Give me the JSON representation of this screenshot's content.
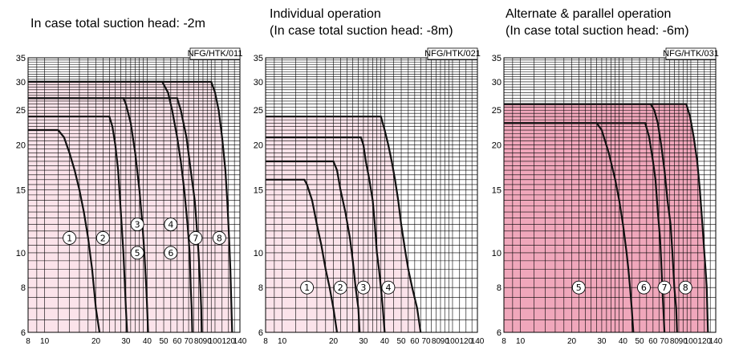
{
  "titles": {
    "left": "In case total suction head: -2m",
    "middle_1": "Individual operation",
    "middle_2": "(In case total suction head: -8m)",
    "right_1": "Alternate & parallel operation",
    "right_2": "(In case total suction head: -6m)"
  },
  "colors": {
    "fill_light": "#fbe3ea",
    "fill_dark": "#f0a7bb",
    "grid": "#000000",
    "curve": "#111111"
  },
  "chart_data": [
    {
      "type": "line",
      "code": "NFG/HTK/011",
      "x_ticks": [
        8,
        10,
        20,
        30,
        40,
        50,
        60,
        70,
        80,
        90,
        100,
        120,
        140
      ],
      "x_tick_labels": [
        "8",
        "10",
        "20",
        "30",
        "40",
        "50",
        "60",
        "70",
        "80",
        "90",
        "100",
        "120",
        "140"
      ],
      "y_ticks": [
        6,
        8,
        10,
        15,
        20,
        25,
        30,
        35
      ],
      "xlim": [
        8,
        140
      ],
      "ylim": [
        6,
        35
      ],
      "fill": "light",
      "series": [
        {
          "name": "1",
          "label_x": 14,
          "label_y": 11,
          "points": [
            [
              8,
              22
            ],
            [
              12,
              22
            ],
            [
              13,
              21
            ],
            [
              14,
              19
            ],
            [
              15,
              17
            ],
            [
              16,
              15
            ],
            [
              17,
              13
            ],
            [
              18,
              11
            ],
            [
              19,
              9
            ],
            [
              20,
              7
            ],
            [
              21,
              6
            ]
          ]
        },
        {
          "name": "2",
          "label_x": 22,
          "label_y": 11,
          "points": [
            [
              8,
              24
            ],
            [
              24,
              24
            ],
            [
              25,
              22.5
            ],
            [
              26,
              20
            ],
            [
              27,
              17
            ],
            [
              28,
              13
            ],
            [
              29,
              10
            ],
            [
              30,
              7
            ],
            [
              30.5,
              6
            ]
          ]
        },
        {
          "name": "3",
          "label_x": 35,
          "label_y": 12,
          "points": [
            [
              8,
              27
            ],
            [
              29,
              27
            ],
            [
              30,
              26
            ],
            [
              32,
              23
            ],
            [
              34,
              19
            ],
            [
              36,
              15
            ],
            [
              37.5,
              12
            ],
            [
              38.5,
              10
            ],
            [
              39.5,
              8
            ],
            [
              40,
              7
            ],
            [
              40.5,
              6
            ]
          ]
        },
        {
          "name": "4",
          "label_x": 55,
          "label_y": 12,
          "points": [
            [
              8,
              30
            ],
            [
              49,
              30
            ],
            [
              53,
              28
            ],
            [
              56,
              25
            ],
            [
              60,
              21
            ],
            [
              63,
              18
            ],
            [
              66,
              15
            ],
            [
              69,
              12
            ],
            [
              71,
              10
            ],
            [
              72,
              8
            ],
            [
              73,
              7
            ],
            [
              73.5,
              6
            ]
          ]
        },
        {
          "name": "5",
          "label_x": 35,
          "label_y": 10,
          "points": []
        },
        {
          "name": "6",
          "label_x": 55,
          "label_y": 10,
          "points": []
        },
        {
          "name": "7",
          "label_x": 77,
          "label_y": 11,
          "points": [
            [
              8,
              27
            ],
            [
              57,
              27
            ],
            [
              60,
              27
            ],
            [
              63,
              25
            ],
            [
              68,
              21
            ],
            [
              72,
              17
            ],
            [
              76,
              14
            ],
            [
              78,
              12
            ],
            [
              80,
              10
            ],
            [
              82,
              8
            ],
            [
              83,
              7
            ],
            [
              83.5,
              6
            ]
          ]
        },
        {
          "name": "8",
          "label_x": 106,
          "label_y": 11,
          "points": [
            [
              8,
              30
            ],
            [
              95,
              30
            ],
            [
              100,
              28
            ],
            [
              105,
              25
            ],
            [
              110,
              21
            ],
            [
              115,
              17
            ],
            [
              118,
              14
            ],
            [
              121,
              11
            ],
            [
              123,
              9
            ],
            [
              125,
              7
            ],
            [
              126,
              6
            ]
          ]
        }
      ]
    },
    {
      "type": "line",
      "code": "NFG/HTK/021",
      "x_ticks": [
        8,
        10,
        20,
        30,
        40,
        50,
        60,
        70,
        80,
        90,
        100,
        120,
        140
      ],
      "x_tick_labels": [
        "8",
        "10",
        "20",
        "30",
        "40",
        "50",
        "60",
        "70",
        "80",
        "90",
        "100",
        "120",
        "140"
      ],
      "y_ticks": [
        6,
        8,
        10,
        15,
        20,
        25,
        30,
        35
      ],
      "xlim": [
        8,
        140
      ],
      "ylim": [
        6,
        35
      ],
      "fill": "light",
      "series": [
        {
          "name": "1",
          "label_x": 14,
          "label_y": 8,
          "points": [
            [
              8,
              16
            ],
            [
              13.5,
              16
            ],
            [
              14,
              15.5
            ],
            [
              15,
              14
            ],
            [
              16,
              12
            ],
            [
              17,
              10.5
            ],
            [
              18,
              9
            ],
            [
              19,
              8
            ],
            [
              20,
              7
            ],
            [
              21,
              6
            ]
          ]
        },
        {
          "name": "2",
          "label_x": 22,
          "label_y": 8,
          "points": [
            [
              8,
              18
            ],
            [
              20,
              18
            ],
            [
              21,
              17
            ],
            [
              22,
              15
            ],
            [
              23.5,
              13
            ],
            [
              25,
              11
            ],
            [
              26,
              9.5
            ],
            [
              27,
              8
            ],
            [
              28,
              7
            ],
            [
              28.5,
              6
            ]
          ]
        },
        {
          "name": "3",
          "label_x": 30,
          "label_y": 8,
          "points": [
            [
              8,
              21
            ],
            [
              29,
              21
            ],
            [
              30,
              20
            ],
            [
              31,
              18
            ],
            [
              32.5,
              16
            ],
            [
              34,
              14
            ],
            [
              35,
              12
            ],
            [
              36,
              10
            ],
            [
              37,
              9
            ],
            [
              38,
              8
            ],
            [
              39,
              7
            ],
            [
              40,
              6
            ]
          ]
        },
        {
          "name": "4",
          "label_x": 42,
          "label_y": 8,
          "points": [
            [
              8,
              24
            ],
            [
              38,
              24
            ],
            [
              40,
              22
            ],
            [
              42,
              20
            ],
            [
              44,
              18
            ],
            [
              46,
              16
            ],
            [
              48,
              14
            ],
            [
              50,
              12
            ],
            [
              53,
              10
            ],
            [
              55,
              9
            ],
            [
              58,
              8
            ],
            [
              62,
              7
            ],
            [
              65,
              6
            ]
          ]
        }
      ]
    },
    {
      "type": "line",
      "code": "NFG/HTK/031",
      "x_ticks": [
        8,
        10,
        20,
        30,
        40,
        50,
        60,
        70,
        80,
        90,
        100,
        120,
        140
      ],
      "x_tick_labels": [
        "8",
        "10",
        "20",
        "30",
        "40",
        "50",
        "60",
        "70",
        "80",
        "90",
        "100",
        "120",
        "140"
      ],
      "y_ticks": [
        6,
        8,
        10,
        15,
        20,
        25,
        30,
        35
      ],
      "xlim": [
        8,
        140
      ],
      "ylim": [
        6,
        35
      ],
      "fill": "dark",
      "series": [
        {
          "name": "5",
          "label_x": 22,
          "label_y": 8,
          "points": [
            [
              8,
              23
            ],
            [
              28,
              23
            ],
            [
              30,
              22
            ],
            [
              33,
              19
            ],
            [
              36,
              16
            ],
            [
              38,
              14
            ],
            [
              40,
              12
            ],
            [
              42,
              10
            ],
            [
              43,
              9
            ],
            [
              44,
              8
            ],
            [
              45,
              7
            ],
            [
              46,
              6
            ]
          ]
        },
        {
          "name": "6",
          "label_x": 53,
          "label_y": 8,
          "points": [
            [
              8,
              23
            ],
            [
              54,
              23
            ],
            [
              57,
              21
            ],
            [
              60,
              18
            ],
            [
              62,
              16
            ],
            [
              64,
              13
            ],
            [
              66,
              11
            ],
            [
              67,
              9.5
            ],
            [
              68,
              8
            ],
            [
              69,
              7
            ],
            [
              70,
              6
            ]
          ]
        },
        {
          "name": "7",
          "label_x": 70,
          "label_y": 8,
          "points": [
            [
              8,
              26
            ],
            [
              58,
              26
            ],
            [
              61,
              25
            ],
            [
              64,
              23
            ],
            [
              67,
              20
            ],
            [
              70,
              17
            ],
            [
              73,
              14
            ],
            [
              76,
              12
            ],
            [
              78,
              10
            ],
            [
              80,
              8
            ],
            [
              82,
              7
            ],
            [
              83,
              6
            ]
          ]
        },
        {
          "name": "8",
          "label_x": 93,
          "label_y": 8,
          "points": [
            [
              8,
              26
            ],
            [
              94,
              26
            ],
            [
              99,
              24
            ],
            [
              104,
              21
            ],
            [
              109,
              18
            ],
            [
              113,
              15
            ],
            [
              117,
              12
            ],
            [
              120,
              10
            ],
            [
              122,
              9
            ],
            [
              124,
              8
            ],
            [
              125,
              7
            ],
            [
              126,
              6
            ]
          ]
        }
      ]
    }
  ]
}
